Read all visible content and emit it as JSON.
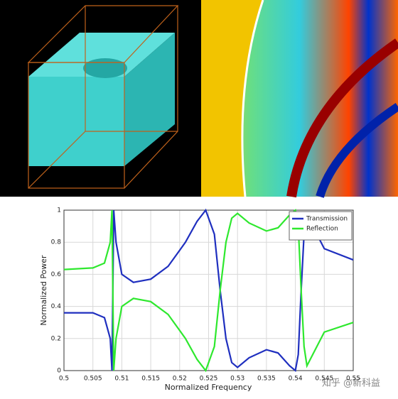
{
  "chart_data": {
    "type": "line",
    "xlabel": "Normalized Frequency",
    "ylabel": "Normalized Power",
    "x": [
      0.5,
      0.505,
      0.507,
      0.508,
      0.5083,
      0.5086,
      0.509,
      0.51,
      0.512,
      0.515,
      0.518,
      0.521,
      0.523,
      0.5245,
      0.526,
      0.527,
      0.528,
      0.529,
      0.53,
      0.532,
      0.535,
      0.537,
      0.539,
      0.54,
      0.5405,
      0.541,
      0.5415,
      0.542,
      0.543,
      0.545,
      0.55
    ],
    "series": [
      {
        "name": "Transmission",
        "color": "#1f2fbf",
        "values": [
          0.36,
          0.36,
          0.33,
          0.2,
          0.0,
          1.0,
          0.8,
          0.6,
          0.55,
          0.57,
          0.65,
          0.8,
          0.93,
          1.0,
          0.85,
          0.5,
          0.2,
          0.05,
          0.02,
          0.08,
          0.13,
          0.11,
          0.03,
          0.0,
          0.1,
          0.5,
          0.85,
          0.97,
          0.9,
          0.76,
          0.69
        ]
      },
      {
        "name": "Reflection",
        "color": "#2ee82e",
        "values": [
          0.63,
          0.64,
          0.67,
          0.8,
          1.0,
          0.0,
          0.2,
          0.4,
          0.45,
          0.43,
          0.35,
          0.2,
          0.07,
          0.0,
          0.15,
          0.5,
          0.8,
          0.95,
          0.98,
          0.92,
          0.87,
          0.89,
          0.97,
          1.0,
          0.9,
          0.5,
          0.15,
          0.03,
          0.1,
          0.24,
          0.3
        ]
      }
    ],
    "xlim": [
      0.5,
      0.55
    ],
    "xticks": [
      0.5,
      0.505,
      0.51,
      0.515,
      0.52,
      0.525,
      0.53,
      0.535,
      0.54,
      0.545,
      0.55
    ],
    "ylim": [
      0,
      1
    ],
    "yticks": [
      0,
      0.2,
      0.4,
      0.6,
      0.8,
      1
    ],
    "grid": true,
    "legend": "top-right"
  },
  "watermark": "知乎 @新科益"
}
